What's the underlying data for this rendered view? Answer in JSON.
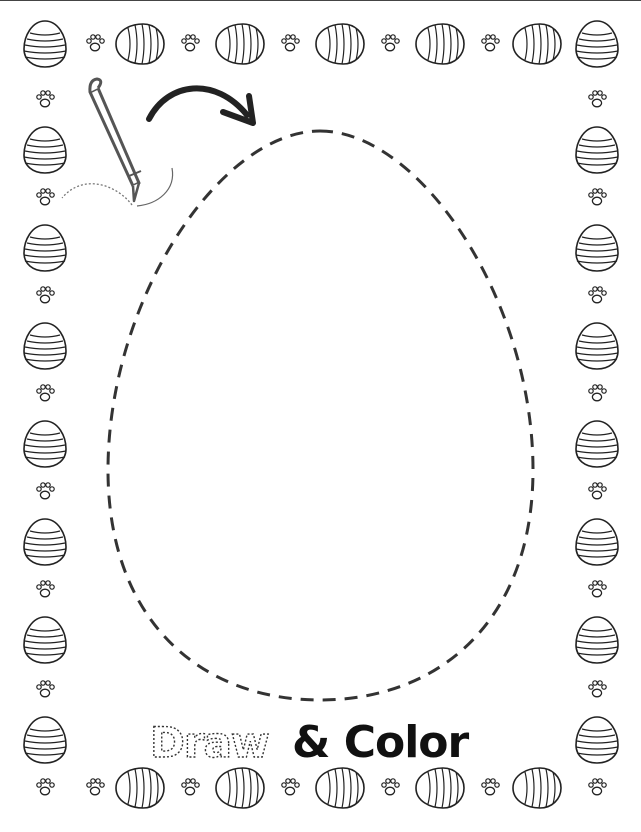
{
  "page": {
    "background": "#ffffff",
    "ink": "#222222"
  },
  "border": {
    "motifs": [
      "easter-egg-icon",
      "paw-print-icon"
    ]
  },
  "guide": {
    "shape": "easter-egg-outline",
    "style": "dashed",
    "tools": [
      "pencil-icon",
      "curved-arrow-icon"
    ]
  },
  "caption": {
    "word_draw": "Draw",
    "word_and_color": "& Color"
  }
}
